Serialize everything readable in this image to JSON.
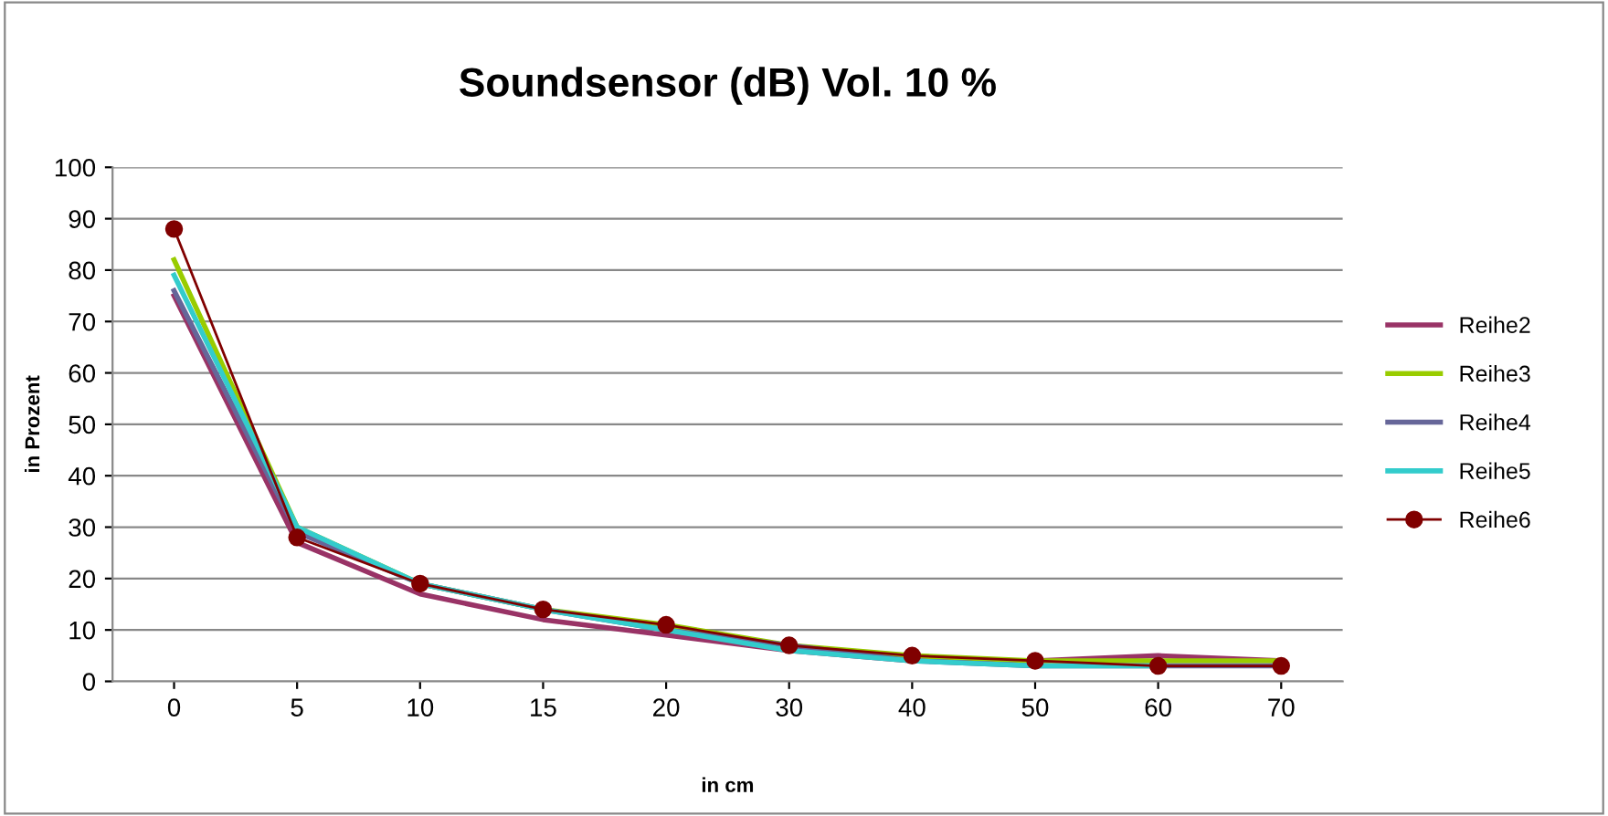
{
  "chart_data": {
    "type": "line",
    "title": "Soundsensor (dB) Vol. 10 %",
    "xlabel": "in cm",
    "ylabel": "in Prozent",
    "categories": [
      "0",
      "5",
      "10",
      "15",
      "20",
      "30",
      "40",
      "50",
      "60",
      "70"
    ],
    "series": [
      {
        "name": "Reihe2",
        "color": "#993366",
        "marker": "none",
        "values": [
          75,
          27,
          17,
          12,
          9,
          6,
          4,
          4,
          5,
          4
        ]
      },
      {
        "name": "Reihe3",
        "color": "#99cc00",
        "marker": "none",
        "values": [
          82,
          30,
          19,
          14,
          11,
          7,
          5,
          4,
          4,
          4
        ]
      },
      {
        "name": "Reihe4",
        "color": "#666699",
        "marker": "none",
        "values": [
          76,
          29,
          19,
          14,
          10,
          7,
          4,
          3,
          3,
          3
        ]
      },
      {
        "name": "Reihe5",
        "color": "#33cccc",
        "marker": "none",
        "values": [
          79,
          30,
          19,
          14,
          10,
          6,
          4,
          3,
          3,
          null
        ]
      },
      {
        "name": "Reihe6",
        "color": "#800000",
        "marker": "circle",
        "values": [
          88,
          28,
          19,
          14,
          11,
          7,
          5,
          4,
          3,
          3
        ]
      }
    ],
    "ylim": [
      0,
      100
    ],
    "yticks": [
      0,
      10,
      20,
      30,
      40,
      50,
      60,
      70,
      80,
      90,
      100
    ],
    "grid": "y",
    "legend": "right"
  }
}
